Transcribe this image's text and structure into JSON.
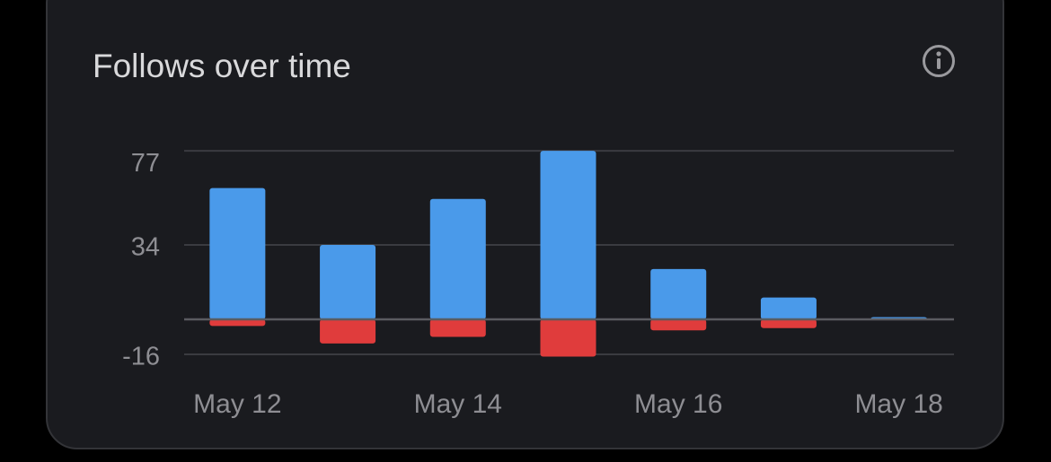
{
  "chart_data": {
    "type": "bar",
    "title": "Follows over time",
    "categories": [
      "May 12",
      null,
      "May 14",
      null,
      "May 16",
      null,
      "May 18"
    ],
    "series": [
      {
        "color": "#4a9aea",
        "values": [
          60,
          34,
          55,
          77,
          23,
          10,
          1
        ]
      },
      {
        "color": "#e03c3c",
        "values": [
          -3,
          -11,
          -8,
          -17,
          -5,
          -4,
          0
        ]
      }
    ],
    "ylim": [
      -17,
      77
    ],
    "yticks": [
      77,
      34,
      -16
    ],
    "grid": true
  }
}
